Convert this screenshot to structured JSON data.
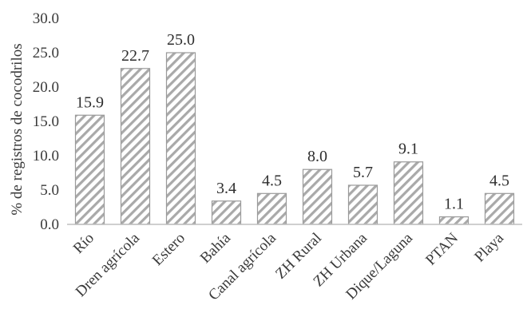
{
  "chart_data": {
    "type": "bar",
    "categories": [
      "Río",
      "Dren agrícola",
      "Estero",
      "Bahía",
      "Canal agrícola",
      "ZH Rural",
      "ZH Urbana",
      "Dique/Laguna",
      "PTAN",
      "Playa"
    ],
    "values": [
      15.9,
      22.7,
      25.0,
      3.4,
      4.5,
      8.0,
      5.7,
      9.1,
      1.1,
      4.5
    ],
    "value_labels": [
      "15.9",
      "22.7",
      "25.0",
      "3.4",
      "4.5",
      "8.0",
      "5.7",
      "9.1",
      "1.1",
      "4.5"
    ],
    "ylabel": "% de registros de cocodrilos",
    "ylim": [
      0,
      30
    ],
    "yticks": [
      "0.0",
      "5.0",
      "10.0",
      "15.0",
      "20.0",
      "25.0",
      "30.0"
    ],
    "grid": false,
    "bar_fill": "hatched",
    "colors": {
      "hatch": "#a9a9a9",
      "bar_border": "#9a9a9a",
      "axis": "#bfbfbf",
      "text": "#3a3a3a"
    }
  }
}
